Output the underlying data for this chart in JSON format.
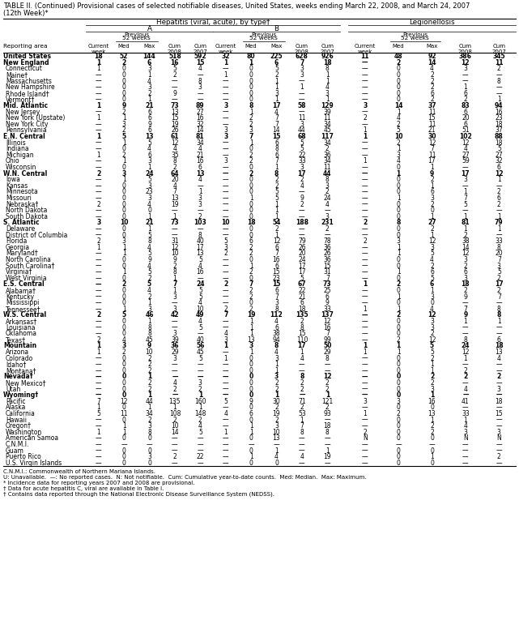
{
  "title_line1": "TABLE II. (Continued) Provisional cases of selected notifiable diseases, United States, weeks ending March 22, 2008, and March 24, 2007",
  "title_line2": "(12th Week)*",
  "col_group1": "Hepatitis (viral, acute), by type†",
  "col_group1a": "A",
  "col_group1b": "B",
  "col_group2": "Legionellosis",
  "rows": [
    [
      "United States",
      "18",
      "52",
      "144",
      "518",
      "592",
      "32",
      "80",
      "225",
      "628",
      "926",
      "11",
      "48",
      "92",
      "386",
      "345"
    ],
    [
      "New England",
      "1",
      "2",
      "6",
      "16",
      "15",
      "1",
      "1",
      "6",
      "7",
      "18",
      "—",
      "2",
      "14",
      "12",
      "11"
    ],
    [
      "Connecticut",
      "1",
      "0",
      "3",
      "5",
      "4",
      "—",
      "0",
      "5",
      "3",
      "8",
      "—",
      "0",
      "4",
      "3",
      "2"
    ],
    [
      "Maine†",
      "—",
      "0",
      "1",
      "2",
      "—",
      "1",
      "0",
      "2",
      "3",
      "1",
      "—",
      "0",
      "2",
      "—",
      "—"
    ],
    [
      "Massachusetts",
      "—",
      "0",
      "4",
      "—",
      "8",
      "—",
      "0",
      "1",
      "—",
      "1",
      "—",
      "0",
      "2",
      "—",
      "8"
    ],
    [
      "New Hampshire",
      "—",
      "0",
      "3",
      "—",
      "3",
      "—",
      "0",
      "1",
      "1",
      "4",
      "—",
      "0",
      "2",
      "1",
      "—"
    ],
    [
      "Rhode Island†",
      "—",
      "0",
      "2",
      "9",
      "—",
      "—",
      "0",
      "3",
      "—",
      "3",
      "—",
      "0",
      "6",
      "6",
      "—"
    ],
    [
      "Vermont†",
      "—",
      "0",
      "1",
      "—",
      "—",
      "—",
      "0",
      "1",
      "—",
      "1",
      "—",
      "0",
      "2",
      "2",
      "1"
    ],
    [
      "Mid. Atlantic",
      "1",
      "9",
      "21",
      "73",
      "89",
      "3",
      "8",
      "17",
      "58",
      "129",
      "3",
      "14",
      "37",
      "83",
      "94"
    ],
    [
      "New Jersey",
      "—",
      "2",
      "6",
      "13",
      "27",
      "—",
      "1",
      "4",
      "—",
      "39",
      "—",
      "1",
      "11",
      "6",
      "16"
    ],
    [
      "New York (Upstate)",
      "1",
      "1",
      "6",
      "15",
      "16",
      "—",
      "2",
      "7",
      "11",
      "11",
      "2",
      "4",
      "15",
      "20",
      "23"
    ],
    [
      "New York City",
      "—",
      "3",
      "9",
      "19",
      "32",
      "—",
      "2",
      "7",
      "3",
      "34",
      "—",
      "2",
      "11",
      "6",
      "18"
    ],
    [
      "Pennsylvania",
      "—",
      "2",
      "6",
      "26",
      "14",
      "3",
      "3",
      "14",
      "44",
      "45",
      "1",
      "5",
      "21",
      "51",
      "37"
    ],
    [
      "E.N. Central",
      "1",
      "5",
      "13",
      "61",
      "81",
      "3",
      "7",
      "15",
      "68",
      "117",
      "1",
      "10",
      "30",
      "102",
      "88"
    ],
    [
      "Illinois",
      "—",
      "1",
      "5",
      "12",
      "34",
      "—",
      "1",
      "6",
      "5",
      "34",
      "—",
      "2",
      "12",
      "12",
      "18"
    ],
    [
      "Indiana",
      "—",
      "0",
      "4",
      "4",
      "4",
      "—",
      "0",
      "8",
      "5",
      "2",
      "—",
      "1",
      "7",
      "4",
      "5"
    ],
    [
      "Michigan",
      "1",
      "2",
      "6",
      "35",
      "21",
      "—",
      "2",
      "6",
      "22",
      "36",
      "—",
      "3",
      "11",
      "27",
      "27"
    ],
    [
      "Ohio",
      "—",
      "1",
      "3",
      "8",
      "16",
      "3",
      "2",
      "7",
      "33",
      "34",
      "1",
      "4",
      "17",
      "59",
      "32"
    ],
    [
      "Wisconsin",
      "—",
      "0",
      "1",
      "2",
      "6",
      "—",
      "0",
      "1",
      "3",
      "11",
      "—",
      "0",
      "1",
      "—",
      "6"
    ],
    [
      "W.N. Central",
      "2",
      "3",
      "24",
      "64",
      "13",
      "—",
      "2",
      "8",
      "17",
      "44",
      "—",
      "1",
      "9",
      "17",
      "12"
    ],
    [
      "Iowa",
      "—",
      "1",
      "5",
      "20",
      "4",
      "—",
      "0",
      "2",
      "2",
      "8",
      "—",
      "0",
      "2",
      "3",
      "1"
    ],
    [
      "Kansas",
      "—",
      "0",
      "3",
      "4",
      "—",
      "—",
      "0",
      "2",
      "4",
      "3",
      "—",
      "0",
      "1",
      "—",
      "—"
    ],
    [
      "Minnesota",
      "—",
      "0",
      "23",
      "7",
      "1",
      "—",
      "0",
      "5",
      "—",
      "2",
      "—",
      "0",
      "6",
      "1",
      "2"
    ],
    [
      "Missouri",
      "—",
      "0",
      "3",
      "13",
      "3",
      "—",
      "1",
      "5",
      "9",
      "24",
      "—",
      "1",
      "3",
      "7",
      "6"
    ],
    [
      "Nebraska†",
      "2",
      "0",
      "4",
      "19",
      "3",
      "—",
      "0",
      "1",
      "2",
      "4",
      "—",
      "0",
      "2",
      "5",
      "2"
    ],
    [
      "North Dakota",
      "—",
      "0",
      "0",
      "—",
      "—",
      "—",
      "0",
      "1",
      "—",
      "—",
      "—",
      "0",
      "0",
      "—",
      "—"
    ],
    [
      "South Dakota",
      "—",
      "0",
      "1",
      "1",
      "2",
      "—",
      "0",
      "1",
      "—",
      "3",
      "—",
      "0",
      "1",
      "1",
      "1"
    ],
    [
      "S. Atlantic",
      "3",
      "10",
      "21",
      "73",
      "103",
      "10",
      "18",
      "54",
      "188",
      "231",
      "2",
      "8",
      "27",
      "81",
      "79"
    ],
    [
      "Delaware",
      "—",
      "0",
      "1",
      "—",
      "—",
      "—",
      "0",
      "2",
      "—",
      "2",
      "—",
      "0",
      "2",
      "1",
      "1"
    ],
    [
      "District of Columbia",
      "—",
      "0",
      "5",
      "—",
      "8",
      "—",
      "0",
      "1",
      "—",
      "—",
      "—",
      "0",
      "1",
      "2",
      "—"
    ],
    [
      "Florida",
      "2",
      "3",
      "8",
      "31",
      "40",
      "5",
      "6",
      "12",
      "79",
      "78",
      "2",
      "3",
      "12",
      "38",
      "33"
    ],
    [
      "Georgia",
      "1",
      "1",
      "4",
      "12",
      "17",
      "3",
      "2",
      "6",
      "26",
      "36",
      "—",
      "1",
      "3",
      "14",
      "8"
    ],
    [
      "Maryland†",
      "—",
      "1",
      "5",
      "10",
      "13",
      "2",
      "2",
      "7",
      "20",
      "26",
      "—",
      "1",
      "5",
      "12",
      "20"
    ],
    [
      "North Carolina",
      "—",
      "0",
      "9",
      "9",
      "5",
      "—",
      "0",
      "16",
      "24",
      "36",
      "—",
      "0",
      "4",
      "3",
      "7"
    ],
    [
      "South Carolina†",
      "—",
      "0",
      "4",
      "2",
      "4",
      "—",
      "1",
      "6",
      "17",
      "15",
      "—",
      "0",
      "2",
      "2",
      "3"
    ],
    [
      "Virginia†",
      "—",
      "1",
      "5",
      "8",
      "16",
      "—",
      "2",
      "15",
      "17",
      "31",
      "—",
      "1",
      "6",
      "6",
      "5"
    ],
    [
      "West Virginia",
      "—",
      "0",
      "2",
      "1",
      "—",
      "—",
      "0",
      "23",
      "5",
      "7",
      "—",
      "0",
      "5",
      "3",
      "2"
    ],
    [
      "E.S. Central",
      "—",
      "2",
      "5",
      "7",
      "24",
      "2",
      "7",
      "15",
      "67",
      "73",
      "1",
      "2",
      "6",
      "18",
      "17"
    ],
    [
      "Alabama†",
      "—",
      "0",
      "4",
      "1",
      "5",
      "—",
      "2",
      "6",
      "22",
      "25",
      "—",
      "0",
      "1",
      "2",
      "2"
    ],
    [
      "Kentucky",
      "—",
      "0",
      "2",
      "3",
      "5",
      "—",
      "2",
      "7",
      "21",
      "6",
      "—",
      "1",
      "3",
      "9",
      "7"
    ],
    [
      "Mississippi",
      "—",
      "0",
      "1",
      "—",
      "4",
      "—",
      "0",
      "3",
      "6",
      "9",
      "—",
      "0",
      "0",
      "—",
      "—"
    ],
    [
      "Tennessee†",
      "—",
      "1",
      "3",
      "3",
      "10",
      "2",
      "2",
      "8",
      "18",
      "33",
      "1",
      "1",
      "4",
      "7",
      "8"
    ],
    [
      "W.S. Central",
      "2",
      "5",
      "46",
      "42",
      "49",
      "7",
      "19",
      "112",
      "135",
      "137",
      "—",
      "2",
      "12",
      "9",
      "8"
    ],
    [
      "Arkansas†",
      "—",
      "0",
      "1",
      "—",
      "4",
      "—",
      "1",
      "4",
      "2",
      "12",
      "—",
      "0",
      "3",
      "1",
      "1"
    ],
    [
      "Louisiana",
      "—",
      "0",
      "8",
      "—",
      "5",
      "—",
      "1",
      "6",
      "8",
      "16",
      "—",
      "0",
      "3",
      "—",
      "—"
    ],
    [
      "Oklahoma",
      "—",
      "0",
      "8",
      "3",
      "—",
      "4",
      "1",
      "38",
      "15",
      "7",
      "—",
      "0",
      "2",
      "—",
      "—"
    ],
    [
      "Texas†",
      "2",
      "4",
      "45",
      "39",
      "40",
      "3",
      "13",
      "94",
      "110",
      "99",
      "—",
      "2",
      "12",
      "8",
      "6"
    ],
    [
      "Mountain",
      "1",
      "3",
      "9",
      "36",
      "56",
      "1",
      "3",
      "8",
      "17",
      "50",
      "1",
      "1",
      "5",
      "24",
      "18"
    ],
    [
      "Arizona",
      "1",
      "2",
      "10",
      "29",
      "45",
      "—",
      "1",
      "4",
      "1",
      "29",
      "1",
      "1",
      "5",
      "12",
      "13"
    ],
    [
      "Colorado",
      "—",
      "0",
      "2",
      "3",
      "5",
      "1",
      "0",
      "3",
      "4",
      "8",
      "—",
      "0",
      "2",
      "1",
      "4"
    ],
    [
      "Idaho†",
      "—",
      "0",
      "2",
      "—",
      "—",
      "—",
      "0",
      "1",
      "—",
      "—",
      "—",
      "0",
      "1",
      "—",
      "—"
    ],
    [
      "Montana†",
      "—",
      "0",
      "2",
      "—",
      "—",
      "—",
      "0",
      "1",
      "—",
      "—",
      "—",
      "0",
      "1",
      "2",
      "—"
    ],
    [
      "Nevada†",
      "—",
      "0",
      "1",
      "—",
      "—",
      "—",
      "0",
      "3",
      "8",
      "12",
      "—",
      "0",
      "2",
      "2",
      "2"
    ],
    [
      "New Mexico†",
      "—",
      "0",
      "2",
      "4",
      "3",
      "—",
      "0",
      "2",
      "2",
      "2",
      "—",
      "0",
      "2",
      "—",
      "—"
    ],
    [
      "Utah",
      "—",
      "0",
      "2",
      "2",
      "2",
      "—",
      "0",
      "2",
      "2",
      "2",
      "—",
      "0",
      "3",
      "4",
      "3"
    ],
    [
      "Wyoming†",
      "—",
      "0",
      "1",
      "—",
      "1",
      "—",
      "0",
      "1",
      "—",
      "1",
      "—",
      "0",
      "1",
      "—",
      "—"
    ],
    [
      "Pacific",
      "7",
      "12",
      "44",
      "135",
      "160",
      "5",
      "9",
      "30",
      "71",
      "121",
      "3",
      "3",
      "16",
      "41",
      "18"
    ],
    [
      "Alaska",
      "1",
      "0",
      "1",
      "1",
      "1",
      "—",
      "0",
      "2",
      "2",
      "2",
      "—",
      "0",
      "0",
      "—",
      "—"
    ],
    [
      "California",
      "5",
      "11",
      "34",
      "108",
      "148",
      "4",
      "6",
      "19",
      "53",
      "93",
      "1",
      "2",
      "13",
      "33",
      "15"
    ],
    [
      "Hawaii",
      "—",
      "0",
      "2",
      "2",
      "2",
      "—",
      "0",
      "2",
      "1",
      "—",
      "—",
      "0",
      "1",
      "1",
      "—"
    ],
    [
      "Oregon†",
      "—",
      "1",
      "3",
      "10",
      "4",
      "—",
      "1",
      "3",
      "7",
      "18",
      "—",
      "0",
      "2",
      "4",
      "—"
    ],
    [
      "Washington",
      "1",
      "1",
      "8",
      "14",
      "5",
      "1",
      "1",
      "10",
      "8",
      "8",
      "2",
      "0",
      "2",
      "3",
      "3"
    ],
    [
      "American Samoa",
      "—",
      "0",
      "0",
      "—",
      "—",
      "—",
      "0",
      "13",
      "—",
      "—",
      "N",
      "0",
      "0",
      "N",
      "N"
    ],
    [
      "C.N.M.I.",
      "—",
      "—",
      "—",
      "—",
      "—",
      "—",
      "—",
      "—",
      "—",
      "—",
      "—",
      "—",
      "—",
      "—",
      "—"
    ],
    [
      "Guam",
      "—",
      "0",
      "0",
      "—",
      "—",
      "—",
      "0",
      "1",
      "—",
      "1",
      "—",
      "0",
      "0",
      "—",
      "—"
    ],
    [
      "Puerto Rico",
      "—",
      "0",
      "3",
      "2",
      "22",
      "—",
      "1",
      "4",
      "4",
      "19",
      "—",
      "0",
      "1",
      "—",
      "2"
    ],
    [
      "U.S. Virgin Islands",
      "—",
      "0",
      "0",
      "—",
      "—",
      "—",
      "0",
      "0",
      "—",
      "—",
      "—",
      "0",
      "0",
      "—",
      "—"
    ]
  ],
  "bold_rows": [
    0,
    1,
    8,
    13,
    19,
    27,
    37,
    42,
    47,
    52,
    55
  ],
  "footnotes": [
    "C.N.M.I.: Commonwealth of Northern Mariana Islands.",
    "U: Unavailable.  —: No reported cases.  N: Not notifiable.  Cum: Cumulative year-to-date counts.  Med: Median.  Max: Maximum.",
    "* Incidence data for reporting years 2007 and 2008 are provisional.",
    "† Data for acute hepatitis C, viral are available in Table I.",
    "† Contains data reported through the National Electronic Disease Surveillance System (NEDSS)."
  ]
}
